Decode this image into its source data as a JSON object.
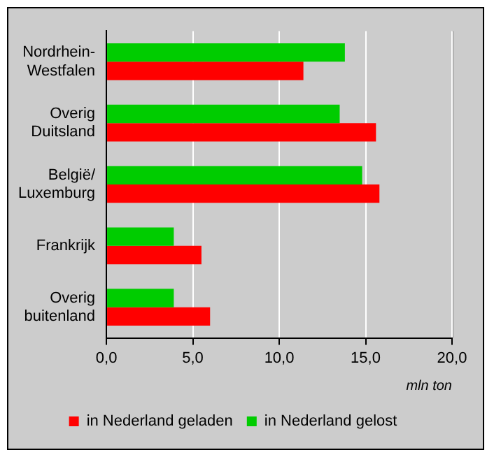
{
  "chart_data": {
    "type": "bar",
    "orientation": "horizontal",
    "xlabel": "mln ton",
    "categories": [
      "Nordrhein-Westfalen",
      "Overig Duitsland",
      "België/Luxemburg",
      "Frankrijk",
      "Overig buitenland"
    ],
    "series": [
      {
        "name": "in Nederland gelost",
        "color": "#00cc00",
        "values": [
          13.8,
          13.5,
          14.8,
          3.9,
          3.9
        ]
      },
      {
        "name": "in Nederland geladen",
        "color": "#ff0000",
        "values": [
          11.4,
          15.6,
          15.8,
          5.5,
          6.0
        ]
      }
    ],
    "xlim": [
      0,
      20
    ],
    "xticks": [
      {
        "value": 0,
        "label": "0,0"
      },
      {
        "value": 5,
        "label": "5,0"
      },
      {
        "value": 10,
        "label": "10,0"
      },
      {
        "value": 15,
        "label": "15,0"
      },
      {
        "value": 20,
        "label": "20,0"
      }
    ],
    "grid": "x",
    "legend": "bottom"
  }
}
